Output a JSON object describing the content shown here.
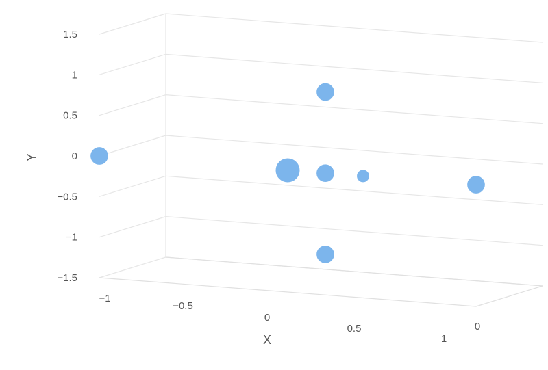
{
  "chart_data": {
    "type": "scatter",
    "subtype": "3d-bubble",
    "title": "",
    "xlabel": "X",
    "ylabel": "Y",
    "zlabel": "",
    "xlim": [
      -1,
      1
    ],
    "ylim": [
      -1.5,
      1.5
    ],
    "zlim": [
      0,
      1
    ],
    "x_ticks": [
      "-1",
      "-0.5",
      "0",
      "0.5",
      "1"
    ],
    "y_ticks": [
      "1.5",
      "1",
      "0.5",
      "0",
      "-0.5",
      "-1",
      "-1.5"
    ],
    "z_ticks": [
      "0"
    ],
    "grid": true,
    "legend": "none",
    "color": "#7cb5ec",
    "series": [
      {
        "points": [
          {
            "x": -1.0,
            "y": 0.0,
            "z": 0.0,
            "size": 2
          },
          {
            "x": 0.0,
            "y": 0.0,
            "z": 0.0,
            "size": 6
          },
          {
            "x": 0.2,
            "y": 1.0,
            "z": 0.0,
            "size": 2
          },
          {
            "x": 0.2,
            "y": 0.0,
            "z": 0.0,
            "size": 2
          },
          {
            "x": 0.4,
            "y": 0.0,
            "z": 0.0,
            "size": 1
          },
          {
            "x": 0.2,
            "y": -1.0,
            "z": 0.0,
            "size": 2
          },
          {
            "x": 1.0,
            "y": 0.0,
            "z": 0.0,
            "size": 2
          }
        ]
      }
    ]
  }
}
